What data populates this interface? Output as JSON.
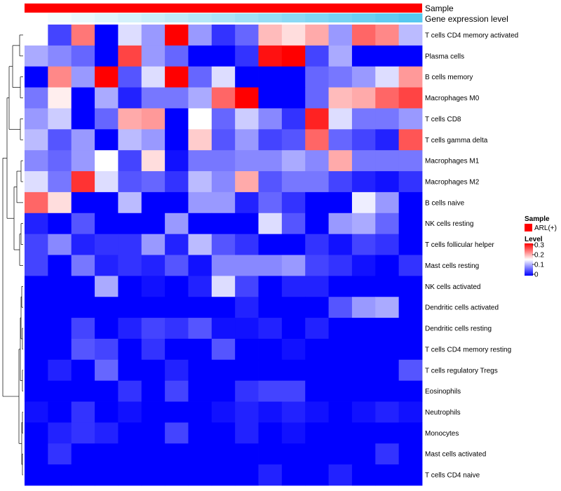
{
  "chart_data": {
    "type": "heatmap",
    "rows": [
      "T cells CD4 memory activated",
      "Plasma cells",
      "B cells memory",
      "Macrophages M0",
      "T cells CD8",
      "T cells gamma delta",
      "Macrophages M1",
      "Macrophages M2",
      "B cells naive",
      "NK cells resting",
      "T cells follicular helper",
      "Mast cells resting",
      "NK cells activated",
      "Dendritic cells activated",
      "Dendritic cells resting",
      "T cells CD4 memory resting",
      "T cells regulatory  Tregs",
      "Eosinophils",
      "Neutrophils",
      "Monocytes",
      "Mast cells activated",
      "T cells CD4 naive"
    ],
    "values": [
      [
        0.15,
        0.04,
        0.23,
        0.0,
        0.13,
        0.09,
        0.3,
        0.09,
        0.03,
        0.06,
        0.19,
        0.17,
        0.2,
        0.09,
        0.24,
        0.22,
        0.11
      ],
      [
        0.1,
        0.08,
        0.06,
        0.0,
        0.26,
        0.09,
        0.06,
        0.0,
        0.0,
        0.03,
        0.29,
        0.3,
        0.04,
        0.1,
        0.0,
        0.0,
        0.0
      ],
      [
        0.0,
        0.22,
        0.09,
        0.3,
        0.05,
        0.13,
        0.3,
        0.06,
        0.13,
        0.0,
        0.0,
        0.0,
        0.06,
        0.07,
        0.09,
        0.13,
        0.21
      ],
      [
        0.07,
        0.16,
        0.0,
        0.1,
        0.02,
        0.07,
        0.07,
        0.1,
        0.24,
        0.3,
        0.0,
        0.0,
        0.06,
        0.19,
        0.2,
        0.24,
        0.26
      ],
      [
        0.09,
        0.12,
        0.0,
        0.06,
        0.2,
        0.21,
        0.0,
        0.15,
        0.06,
        0.12,
        0.08,
        0.03,
        0.28,
        0.13,
        0.07,
        0.07,
        0.09
      ],
      [
        0.11,
        0.05,
        0.09,
        0.0,
        0.11,
        0.09,
        0.0,
        0.18,
        0.05,
        0.09,
        0.04,
        0.05,
        0.24,
        0.06,
        0.04,
        0.02,
        0.25
      ],
      [
        0.08,
        0.06,
        0.09,
        0.15,
        0.04,
        0.17,
        0.01,
        0.07,
        0.07,
        0.08,
        0.08,
        0.1,
        0.08,
        0.2,
        0.07,
        0.07,
        0.07
      ],
      [
        0.13,
        0.07,
        0.27,
        0.13,
        0.05,
        0.06,
        0.03,
        0.11,
        0.08,
        0.2,
        0.05,
        0.07,
        0.07,
        0.04,
        0.02,
        0.01,
        0.03
      ],
      [
        0.24,
        0.17,
        0.0,
        0.0,
        0.11,
        0.0,
        0.0,
        0.09,
        0.09,
        0.02,
        0.06,
        0.03,
        0.0,
        0.0,
        0.14,
        0.09,
        0.0
      ],
      [
        0.02,
        0.0,
        0.05,
        0.0,
        0.0,
        0.0,
        0.09,
        0.0,
        0.0,
        0.0,
        0.13,
        0.05,
        0.0,
        0.09,
        0.1,
        0.06,
        0.0
      ],
      [
        0.04,
        0.08,
        0.02,
        0.03,
        0.03,
        0.09,
        0.02,
        0.11,
        0.05,
        0.03,
        0.0,
        0.0,
        0.03,
        0.01,
        0.04,
        0.03,
        0.0
      ],
      [
        0.04,
        0.0,
        0.07,
        0.02,
        0.03,
        0.02,
        0.05,
        0.01,
        0.08,
        0.08,
        0.08,
        0.09,
        0.04,
        0.03,
        0.01,
        0.0,
        0.03
      ],
      [
        0.0,
        0.0,
        0.0,
        0.1,
        0.0,
        0.01,
        0.0,
        0.02,
        0.13,
        0.04,
        0.0,
        0.02,
        0.02,
        0.0,
        0.0,
        0.0,
        0.0
      ],
      [
        0.0,
        0.0,
        0.0,
        0.0,
        0.0,
        0.0,
        0.0,
        0.0,
        0.0,
        0.02,
        0.0,
        0.0,
        0.0,
        0.05,
        0.09,
        0.1,
        0.0
      ],
      [
        0.0,
        0.0,
        0.04,
        0.0,
        0.02,
        0.04,
        0.03,
        0.05,
        0.01,
        0.01,
        0.02,
        0.0,
        0.02,
        0.0,
        0.0,
        0.0,
        0.0
      ],
      [
        0.0,
        0.0,
        0.05,
        0.04,
        0.0,
        0.03,
        0.0,
        0.0,
        0.05,
        0.0,
        0.0,
        0.01,
        0.0,
        0.0,
        0.0,
        0.0,
        0.0
      ],
      [
        0.0,
        0.02,
        0.0,
        0.06,
        0.0,
        0.0,
        0.02,
        0.0,
        0.0,
        0.0,
        0.0,
        0.0,
        0.0,
        0.0,
        0.0,
        0.0,
        0.05
      ],
      [
        0.0,
        0.0,
        0.0,
        0.0,
        0.03,
        0.0,
        0.04,
        0.0,
        0.0,
        0.03,
        0.04,
        0.04,
        0.0,
        0.0,
        0.0,
        0.0,
        0.0
      ],
      [
        0.01,
        0.0,
        0.03,
        0.0,
        0.01,
        0.0,
        0.0,
        0.0,
        0.01,
        0.02,
        0.01,
        0.02,
        0.01,
        0.0,
        0.01,
        0.02,
        0.01
      ],
      [
        0.0,
        0.02,
        0.03,
        0.02,
        0.0,
        0.0,
        0.04,
        0.0,
        0.0,
        0.02,
        0.0,
        0.01,
        0.0,
        0.0,
        0.0,
        0.0,
        0.0
      ],
      [
        0.0,
        0.03,
        0.0,
        0.0,
        0.0,
        0.0,
        0.0,
        0.0,
        0.0,
        0.0,
        0.0,
        0.0,
        0.0,
        0.0,
        0.0,
        0.03,
        0.0
      ],
      [
        0.0,
        0.0,
        0.0,
        0.0,
        0.0,
        0.0,
        0.0,
        0.0,
        0.0,
        0.0,
        0.02,
        0.0,
        0.0,
        0.02,
        0.0,
        0.0,
        0.0
      ]
    ],
    "annotations": {
      "sample": {
        "label": "Sample",
        "color": "#ff0000"
      },
      "gene_expression": {
        "label": "Gene expression level",
        "color_low": "#ffffff",
        "color_high": "#56c8f0"
      }
    },
    "legend": {
      "placement": "right",
      "sample_title": "Sample",
      "sample_item": "ARL(+)",
      "sample_color": "#ff0000",
      "level_title": "Level",
      "level_ticks": [
        "0.3",
        "0.2",
        "0.1",
        "0"
      ],
      "level_range": [
        0,
        0.3
      ]
    },
    "colorscale": {
      "low": "#0000ff",
      "mid": "#ffffff",
      "high": "#ff0000",
      "range": [
        0,
        0.3
      ]
    },
    "dendrogram": "rows"
  }
}
